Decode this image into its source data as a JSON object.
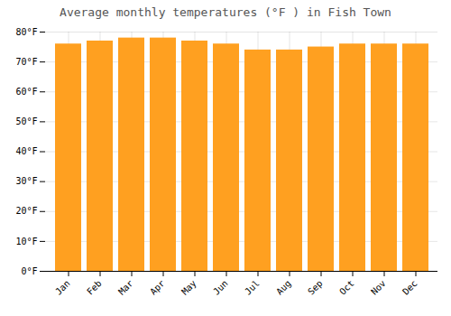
{
  "chart_data": {
    "type": "bar",
    "title": "Average monthly temperatures (°F ) in Fish Town",
    "categories": [
      "Jan",
      "Feb",
      "Mar",
      "Apr",
      "May",
      "Jun",
      "Jul",
      "Aug",
      "Sep",
      "Oct",
      "Nov",
      "Dec"
    ],
    "values": [
      76,
      77,
      78,
      78,
      77,
      76,
      74,
      74,
      75,
      76,
      76,
      76
    ],
    "color": "#FFA020",
    "ylim": [
      0,
      80
    ],
    "yticks": [
      {
        "value": 0,
        "label": "0°F"
      },
      {
        "value": 10,
        "label": "10°F"
      },
      {
        "value": 20,
        "label": "20°F"
      },
      {
        "value": 30,
        "label": "30°F"
      },
      {
        "value": 40,
        "label": "40°F"
      },
      {
        "value": 50,
        "label": "50°F"
      },
      {
        "value": 60,
        "label": "60°F"
      },
      {
        "value": 70,
        "label": "70°F"
      },
      {
        "value": 80,
        "label": "80°F"
      }
    ],
    "grid": true
  }
}
